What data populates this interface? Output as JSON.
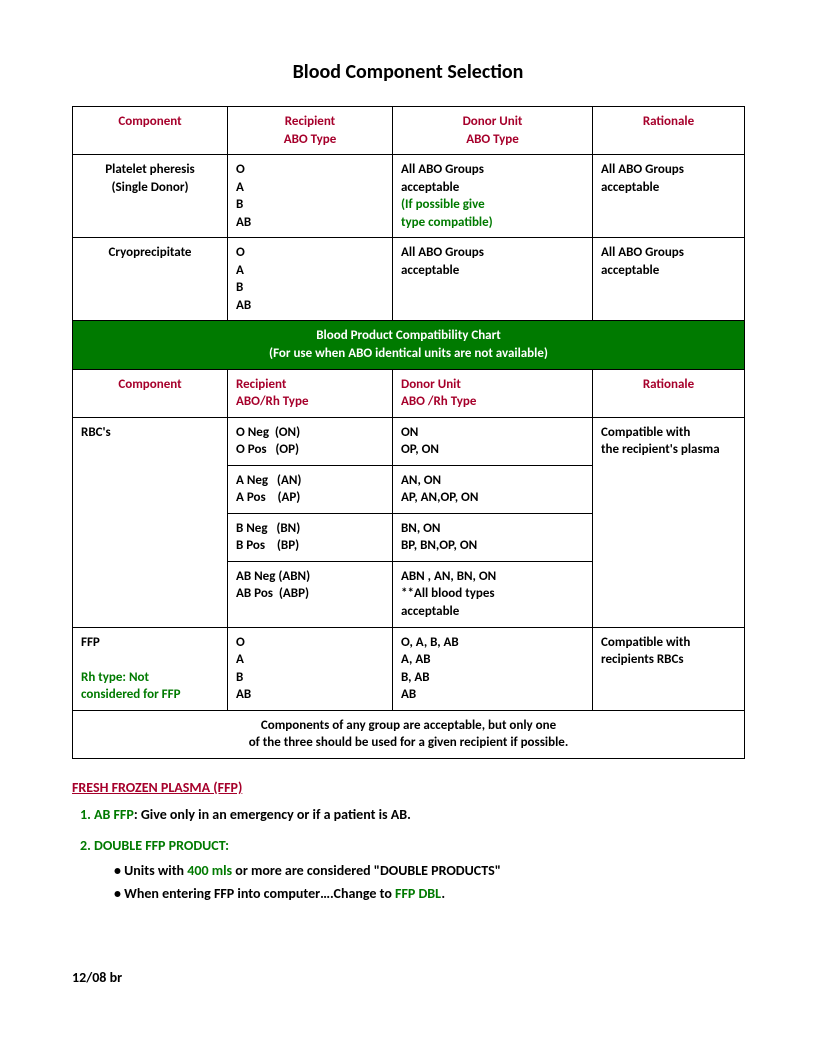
{
  "title": "Blood Component Selection",
  "headers1": {
    "c1": "Component",
    "c2a": "Recipient",
    "c2b": "ABO Type",
    "c3a": "Donor Unit",
    "c3b": "ABO Type",
    "c4": "Rationale"
  },
  "row_platelet": {
    "component_l1": "Platelet pheresis",
    "component_l2": "(Single Donor)",
    "recipient": "O\nA\nB\nAB",
    "donor_l1": "All ABO Groups",
    "donor_l2": "acceptable",
    "donor_green_l1": "(If possible give",
    "donor_green_l2": "type compatible)",
    "rationale_l1": "All ABO Groups",
    "rationale_l2": "acceptable"
  },
  "row_cryo": {
    "component": "Cryoprecipitate",
    "recipient": "O\nA\nB\nAB",
    "donor_l1": "All ABO Groups",
    "donor_l2": "acceptable",
    "rationale_l1": "All ABO Groups",
    "rationale_l2": "acceptable"
  },
  "band": {
    "l1": "Blood Product Compatibility Chart",
    "l2": "(For use when ABO identical units are not available)"
  },
  "headers2": {
    "c1": "Component",
    "c2a": "Recipient",
    "c2b": "ABO/Rh Type",
    "c3a": "Donor Unit",
    "c3b": "ABO /Rh Type",
    "c4": "Rationale"
  },
  "rbc": {
    "name": "RBC's",
    "rows": [
      {
        "r": "O Neg  (ON)\nO Pos   (OP)",
        "d": "ON\nOP, ON"
      },
      {
        "r": "A Neg   (AN)\nA Pos    (AP)",
        "d": "AN, ON\nAP, AN,OP, ON"
      },
      {
        "r": "B Neg   (BN)\nB Pos    (BP)",
        "d": "BN, ON\nBP, BN,OP, ON"
      },
      {
        "r": "AB Neg (ABN)\nAB Pos  (ABP)",
        "d": "ABN , AN, BN, ON\n**All blood types\nacceptable"
      }
    ],
    "rationale_l1": "Compatible with",
    "rationale_l2": "the recipient's plasma"
  },
  "ffp": {
    "name": "FFP",
    "note_l1": "Rh type: Not",
    "note_l2": "considered for FFP",
    "recipient": "O\nA\nB\nAB",
    "donor": "O, A, B, AB\nA, AB\nB, AB\nAB",
    "rationale_l1": "Compatible with",
    "rationale_l2": "recipients RBCs"
  },
  "footnote_l1": "Components of any group are acceptable, but only one",
  "footnote_l2": "of the three should be used for a given recipient if possible.",
  "section_heading": "FRESH FROZEN PLASMA (FFP)",
  "note1_label": "AB FFP",
  "note1_text": ":   Give only in an emergency or if a patient is AB.",
  "note2_label": "DOUBLE FFP PRODUCT:",
  "note2_b1a": "Units with ",
  "note2_b1_green": "400 mls",
  "note2_b1b": " or more are considered \"DOUBLE PRODUCTS\"",
  "note2_b2a": "When entering FFP into computer….Change to ",
  "note2_b2_green": "FFP DBL",
  "note2_b2b": ".",
  "date": "12/08   br",
  "colors": {
    "header_red": "#a6002b",
    "green": "#007a00",
    "band_bg": "#007a00",
    "band_fg": "#ffffff",
    "text": "#000000"
  }
}
